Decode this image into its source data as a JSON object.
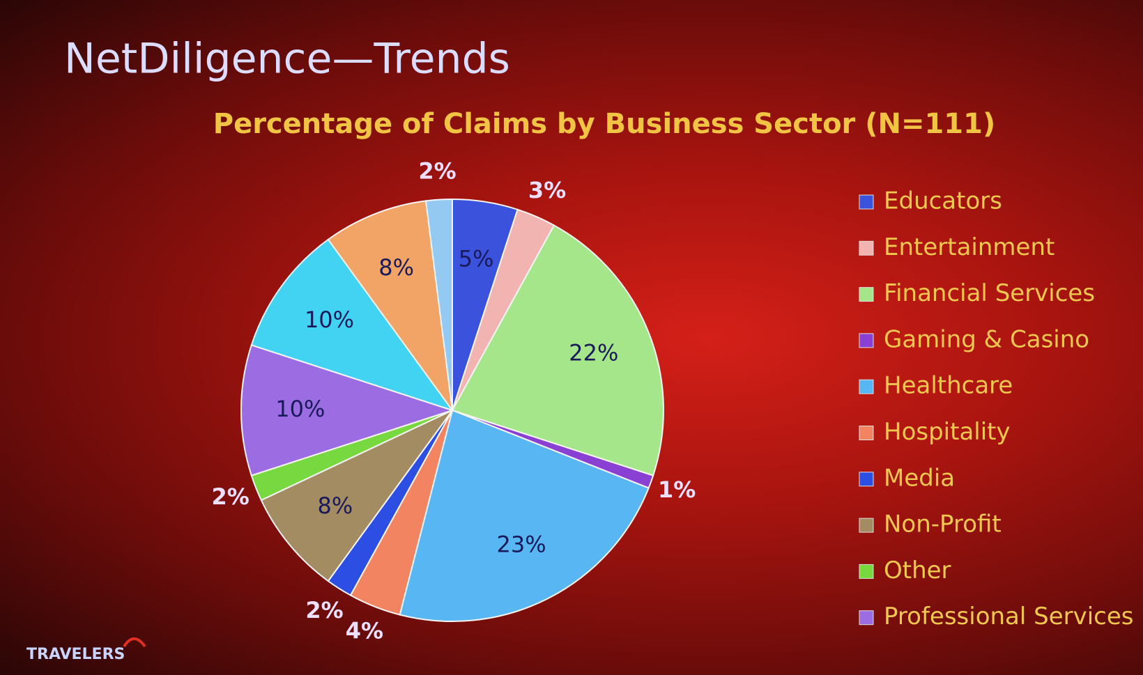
{
  "slide_title": "NetDiligence—Trends",
  "logo": "TRAVELERS",
  "chart_data": {
    "type": "pie",
    "title": "Percentage of Claims by Business Sector (N=111)",
    "categories": [
      "Educators",
      "Entertainment",
      "Financial Services",
      "Gaming & Casino",
      "Healthcare",
      "Hospitality",
      "Media",
      "Non-Profit",
      "Other",
      "Professional Services",
      null,
      null,
      null
    ],
    "values": [
      5,
      3,
      22,
      1,
      23,
      4,
      2,
      8,
      2,
      10,
      10,
      8,
      2
    ],
    "value_labels": [
      "5%",
      "3%",
      "22%",
      "1%",
      "23%",
      "4%",
      "2%",
      "8%",
      "2%",
      "10%",
      "10%",
      "8%",
      "2%"
    ],
    "colors": [
      "#3a52dc",
      "#f2b4b0",
      "#a6e68a",
      "#8a40d2",
      "#58b6f2",
      "#f28462",
      "#2c4ee2",
      "#a48c62",
      "#78d840",
      "#9c6ce2",
      "#42d2f2",
      "#f2a466",
      "#94caf2"
    ],
    "legend": "right"
  }
}
